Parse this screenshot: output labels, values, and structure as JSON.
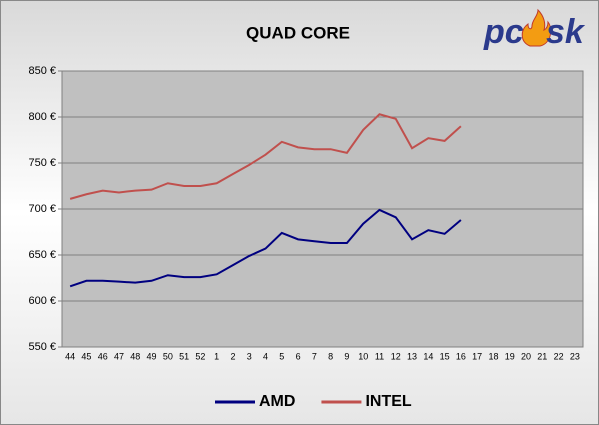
{
  "chart_data": {
    "type": "line",
    "title": "QUAD CORE",
    "logo": [
      "pc",
      "sk"
    ],
    "categories": [
      "44",
      "45",
      "46",
      "47",
      "48",
      "49",
      "50",
      "51",
      "52",
      "1",
      "2",
      "3",
      "4",
      "5",
      "6",
      "7",
      "8",
      "9",
      "10",
      "11",
      "12",
      "13",
      "14",
      "15",
      "16",
      "17",
      "18",
      "19",
      "20",
      "21",
      "22",
      "23"
    ],
    "series": [
      {
        "name": "AMD",
        "color": "#000080",
        "values": [
          616,
          622,
          622,
          621,
          620,
          622,
          628,
          626,
          626,
          629,
          639,
          649,
          657,
          674,
          667,
          665,
          663,
          663,
          684,
          699,
          691,
          667,
          677,
          673,
          688,
          null,
          null,
          null,
          null,
          null,
          null,
          null
        ]
      },
      {
        "name": "INTEL",
        "color": "#c0504d",
        "values": [
          711,
          716,
          720,
          718,
          720,
          721,
          728,
          725,
          725,
          728,
          738,
          748,
          759,
          773,
          767,
          765,
          765,
          761,
          786,
          803,
          798,
          766,
          777,
          774,
          790,
          null,
          null,
          null,
          null,
          null,
          null,
          null
        ]
      }
    ],
    "ylim": [
      550,
      850
    ],
    "yticks": [
      {
        "value": 550,
        "label": "550 €"
      },
      {
        "value": 600,
        "label": "600 €"
      },
      {
        "value": 650,
        "label": "650 €"
      },
      {
        "value": 700,
        "label": "700 €"
      },
      {
        "value": 750,
        "label": "750 €"
      },
      {
        "value": 800,
        "label": "800 €"
      },
      {
        "value": 850,
        "label": "850 €"
      }
    ],
    "grid": true,
    "legend": "bottom",
    "plot_background": "#c0c0c0"
  }
}
